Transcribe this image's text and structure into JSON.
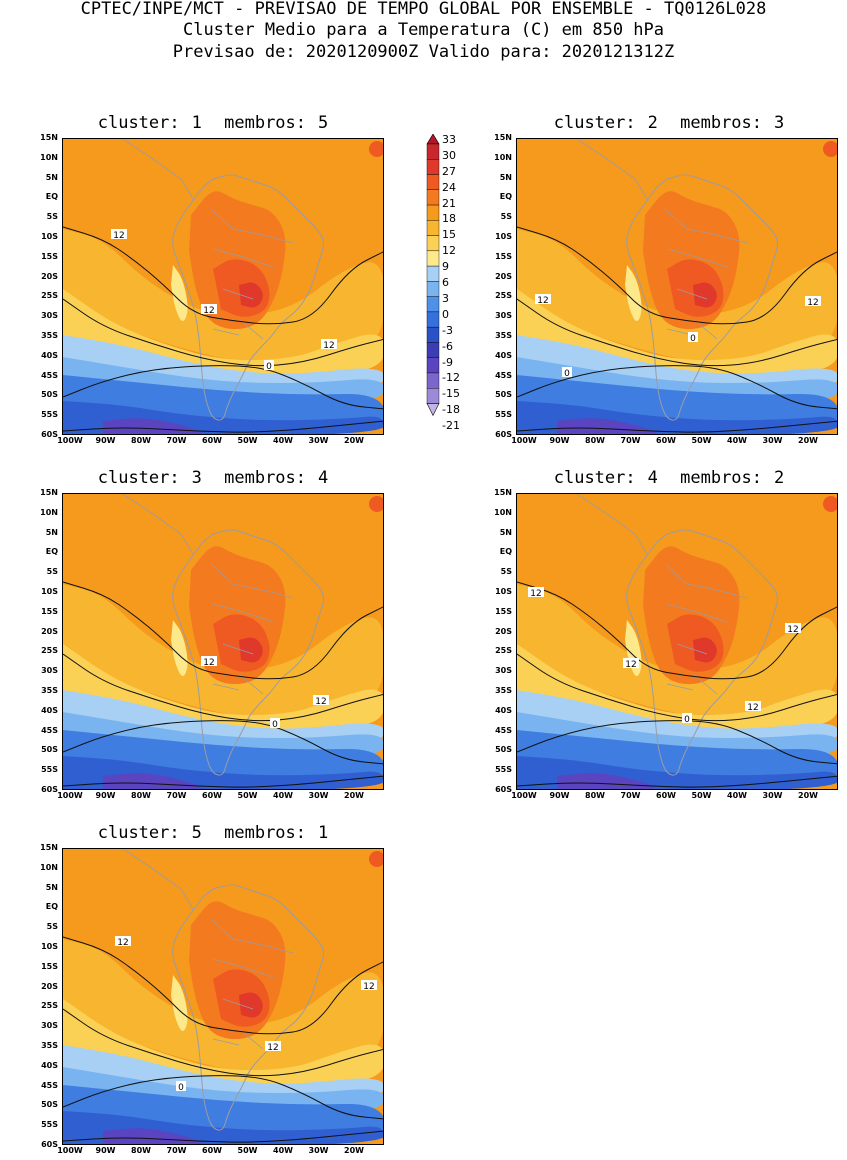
{
  "header": {
    "line1": "CPTEC/INPE/MCT - PREVISAO DE TEMPO GLOBAL POR ENSEMBLE - TQ0126L028",
    "line2": "Cluster Medio para a Temperatura (C) em 850 hPa",
    "line3": "Previsao de: 2020120900Z   Valido para: 2020121312Z"
  },
  "axes": {
    "y_ticks": [
      "15N",
      "10N",
      "5N",
      "EQ",
      "5S",
      "10S",
      "15S",
      "20S",
      "25S",
      "30S",
      "35S",
      "40S",
      "45S",
      "50S",
      "55S",
      "60S"
    ],
    "x_ticks": [
      "100W",
      "90W",
      "80W",
      "70W",
      "60W",
      "50W",
      "40W",
      "30W",
      "20W"
    ]
  },
  "colorbar": {
    "levels": [
      "33",
      "30",
      "27",
      "24",
      "21",
      "18",
      "15",
      "12",
      "9",
      "6",
      "3",
      "0",
      "-3",
      "-6",
      "-9",
      "-12",
      "-15",
      "-18",
      "-21"
    ],
    "colors": [
      "#b2152a",
      "#c8282d",
      "#e0382a",
      "#ef5a22",
      "#f47a20",
      "#f59a1c",
      "#f8b630",
      "#fbd155",
      "#fde88a",
      "#a8d0f4",
      "#7ab4f0",
      "#4f90e8",
      "#3570dc",
      "#2a52c8",
      "#3c3cb4",
      "#5a44c0",
      "#7a66cc",
      "#9c8ad8",
      "#c2b4e6"
    ]
  },
  "panels": [
    {
      "label": "cluster:",
      "num": "1",
      "mlabel": "membros:",
      "members": "5",
      "contours": [
        {
          "text": "12"
        },
        {
          "text": "12"
        },
        {
          "text": "12"
        },
        {
          "text": "0"
        }
      ]
    },
    {
      "label": "cluster:",
      "num": "2",
      "mlabel": "membros:",
      "members": "3",
      "contours": [
        {
          "text": "12"
        },
        {
          "text": "12"
        },
        {
          "text": "0"
        },
        {
          "text": "0"
        }
      ]
    },
    {
      "label": "cluster:",
      "num": "3",
      "mlabel": "membros:",
      "members": "4",
      "contours": [
        {
          "text": "12"
        },
        {
          "text": "12"
        },
        {
          "text": "0"
        }
      ]
    },
    {
      "label": "cluster:",
      "num": "4",
      "mlabel": "membros:",
      "members": "2",
      "contours": [
        {
          "text": "12"
        },
        {
          "text": "12"
        },
        {
          "text": "12"
        },
        {
          "text": "12"
        },
        {
          "text": "0"
        }
      ]
    },
    {
      "label": "cluster:",
      "num": "5",
      "mlabel": "membros:",
      "members": "1",
      "contours": [
        {
          "text": "12"
        },
        {
          "text": "12"
        },
        {
          "text": "12"
        },
        {
          "text": "0"
        }
      ]
    }
  ]
}
